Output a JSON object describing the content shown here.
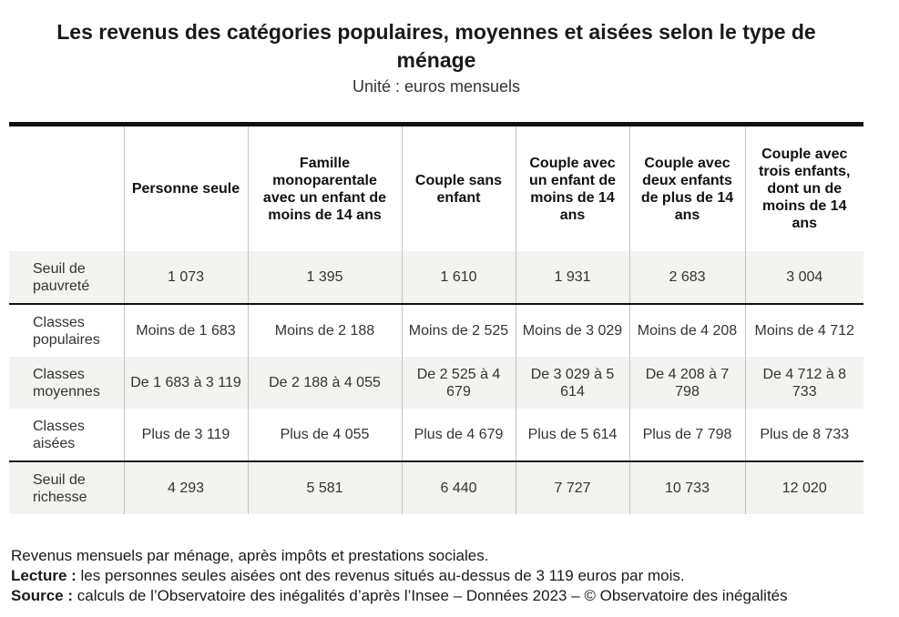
{
  "title": "Les revenus des catégories populaires, moyennes et aisées selon le type de ménage",
  "subtitle": "Unité : euros mensuels",
  "columns": [
    "",
    "Personne seule",
    "Famille monoparentale avec un enfant de moins de 14 ans",
    "Couple sans enfant",
    "Couple avec un enfant de moins de 14 ans",
    "Couple avec deux enfants de plus de 14 ans",
    "Couple avec trois enfants, dont un de moins de 14 ans"
  ],
  "rows": [
    {
      "label": "Seuil de pauvreté",
      "values": [
        "1 073",
        "1 395",
        "1 610",
        "1 931",
        "2 683",
        "3 004"
      ]
    },
    {
      "label": "Classes populaires",
      "values": [
        "Moins de 1 683",
        "Moins de 2 188",
        "Moins de 2 525",
        "Moins de 3 029",
        "Moins de 4 208",
        "Moins de 4 712"
      ]
    },
    {
      "label": "Classes moyennes",
      "values": [
        "De 1 683 à 3 119",
        "De 2 188 à 4 055",
        "De 2 525 à 4 679",
        "De 3 029 à 5 614",
        "De 4 208 à 7 798",
        "De 4 712 à 8 733"
      ]
    },
    {
      "label": "Classes aisées",
      "values": [
        "Plus de 3 119",
        "Plus de 4 055",
        "Plus de 4 679",
        "Plus de 5 614",
        "Plus de 7 798",
        "Plus de 8 733"
      ]
    },
    {
      "label": "Seuil de richesse",
      "values": [
        "4 293",
        "5 581",
        "6 440",
        "7 727",
        "10 733",
        "12 020"
      ]
    }
  ],
  "footer": {
    "note": "Revenus mensuels par ménage, après impôts et prestations sociales.",
    "lecture_label": "Lecture :",
    "lecture_text": "les personnes seules aisées ont des revenus situés au-dessus de 3 119 euros par mois.",
    "source_label": "Source :",
    "source_text": "calculs de l’Observatoire des inégalités d’après l’Insee – Données 2023 – © Observatoire des inégalités"
  }
}
